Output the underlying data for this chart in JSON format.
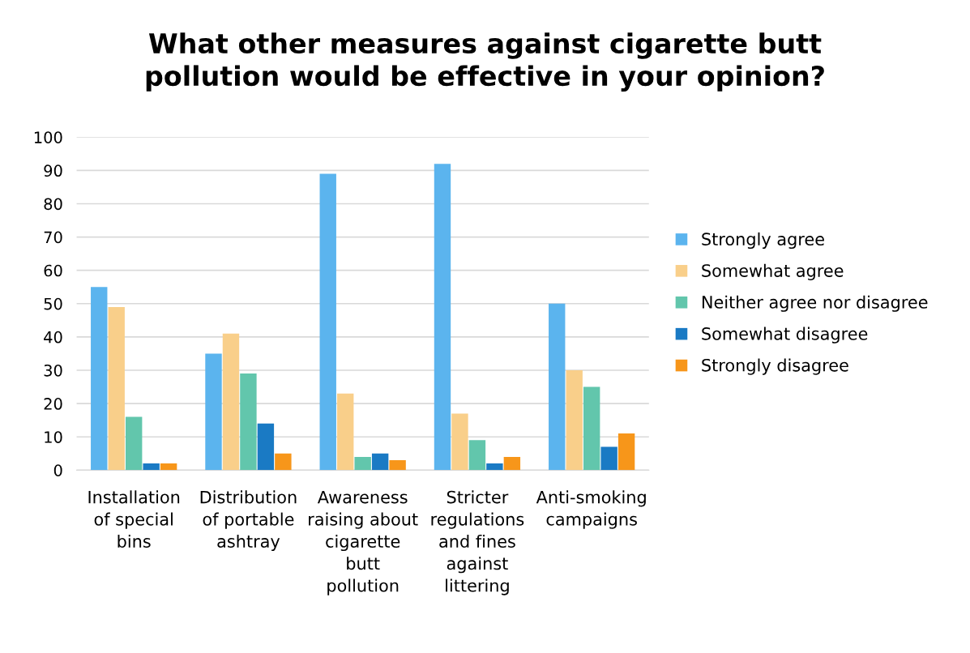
{
  "chart_data": {
    "type": "bar",
    "title": "What other measures against cigarette butt pollution would be effective in your opinion?",
    "categories": [
      "Installation of special bins",
      "Distribution of portable ashtray",
      "Awareness raising about cigarette butt pollution",
      "Stricter regulations and fines against littering",
      "Anti-smoking campaigns"
    ],
    "series": [
      {
        "name": "Strongly agree",
        "color": "#5bb4ee",
        "values": [
          55,
          35,
          89,
          92,
          50
        ]
      },
      {
        "name": "Somewhat agree",
        "color": "#f9cf8a",
        "values": [
          49,
          41,
          23,
          17,
          30
        ]
      },
      {
        "name": "Neither agree nor disagree",
        "color": "#62c6ac",
        "values": [
          16,
          29,
          4,
          9,
          25
        ]
      },
      {
        "name": "Somewhat disagree",
        "color": "#1a7ac4",
        "values": [
          2,
          14,
          5,
          2,
          7
        ]
      },
      {
        "name": "Strongly disagree",
        "color": "#f7961a",
        "values": [
          2,
          5,
          3,
          4,
          11
        ]
      }
    ],
    "ylim": [
      0,
      100
    ],
    "yticks": [
      0,
      10,
      20,
      30,
      40,
      50,
      60,
      70,
      80,
      90,
      100
    ],
    "grid": "y",
    "legend": "right"
  }
}
